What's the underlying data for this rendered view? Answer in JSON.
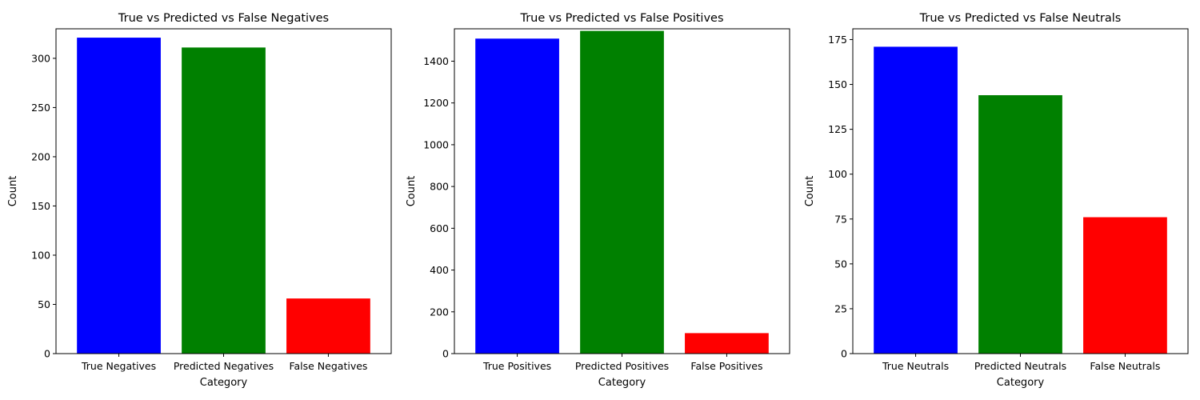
{
  "chart_data": [
    {
      "type": "bar",
      "title": "True vs Predicted vs False Negatives",
      "xlabel": "Category",
      "ylabel": "Count",
      "categories": [
        "True Negatives",
        "Predicted Negatives",
        "False Negatives"
      ],
      "values": [
        321,
        311,
        56
      ],
      "colors": [
        "#0000ff",
        "#008000",
        "#ff0000"
      ],
      "ylim": [
        0,
        330
      ],
      "yticks": [
        0,
        50,
        100,
        150,
        200,
        250,
        300
      ],
      "grid": false
    },
    {
      "type": "bar",
      "title": "True vs Predicted vs False Positives",
      "xlabel": "Category",
      "ylabel": "Count",
      "categories": [
        "True Positives",
        "Predicted Positives",
        "False Positives"
      ],
      "values": [
        1508,
        1545,
        98
      ],
      "colors": [
        "#0000ff",
        "#008000",
        "#ff0000"
      ],
      "ylim": [
        0,
        1555
      ],
      "yticks": [
        0,
        200,
        400,
        600,
        800,
        1000,
        1200,
        1400
      ],
      "grid": false
    },
    {
      "type": "bar",
      "title": "True vs Predicted vs False Neutrals",
      "xlabel": "Category",
      "ylabel": "Count",
      "categories": [
        "True Neutrals",
        "Predicted Neutrals",
        "False Neutrals"
      ],
      "values": [
        171,
        144,
        76
      ],
      "colors": [
        "#0000ff",
        "#008000",
        "#ff0000"
      ],
      "ylim": [
        0,
        181
      ],
      "yticks": [
        0,
        25,
        50,
        75,
        100,
        125,
        150,
        175
      ],
      "grid": false
    }
  ]
}
